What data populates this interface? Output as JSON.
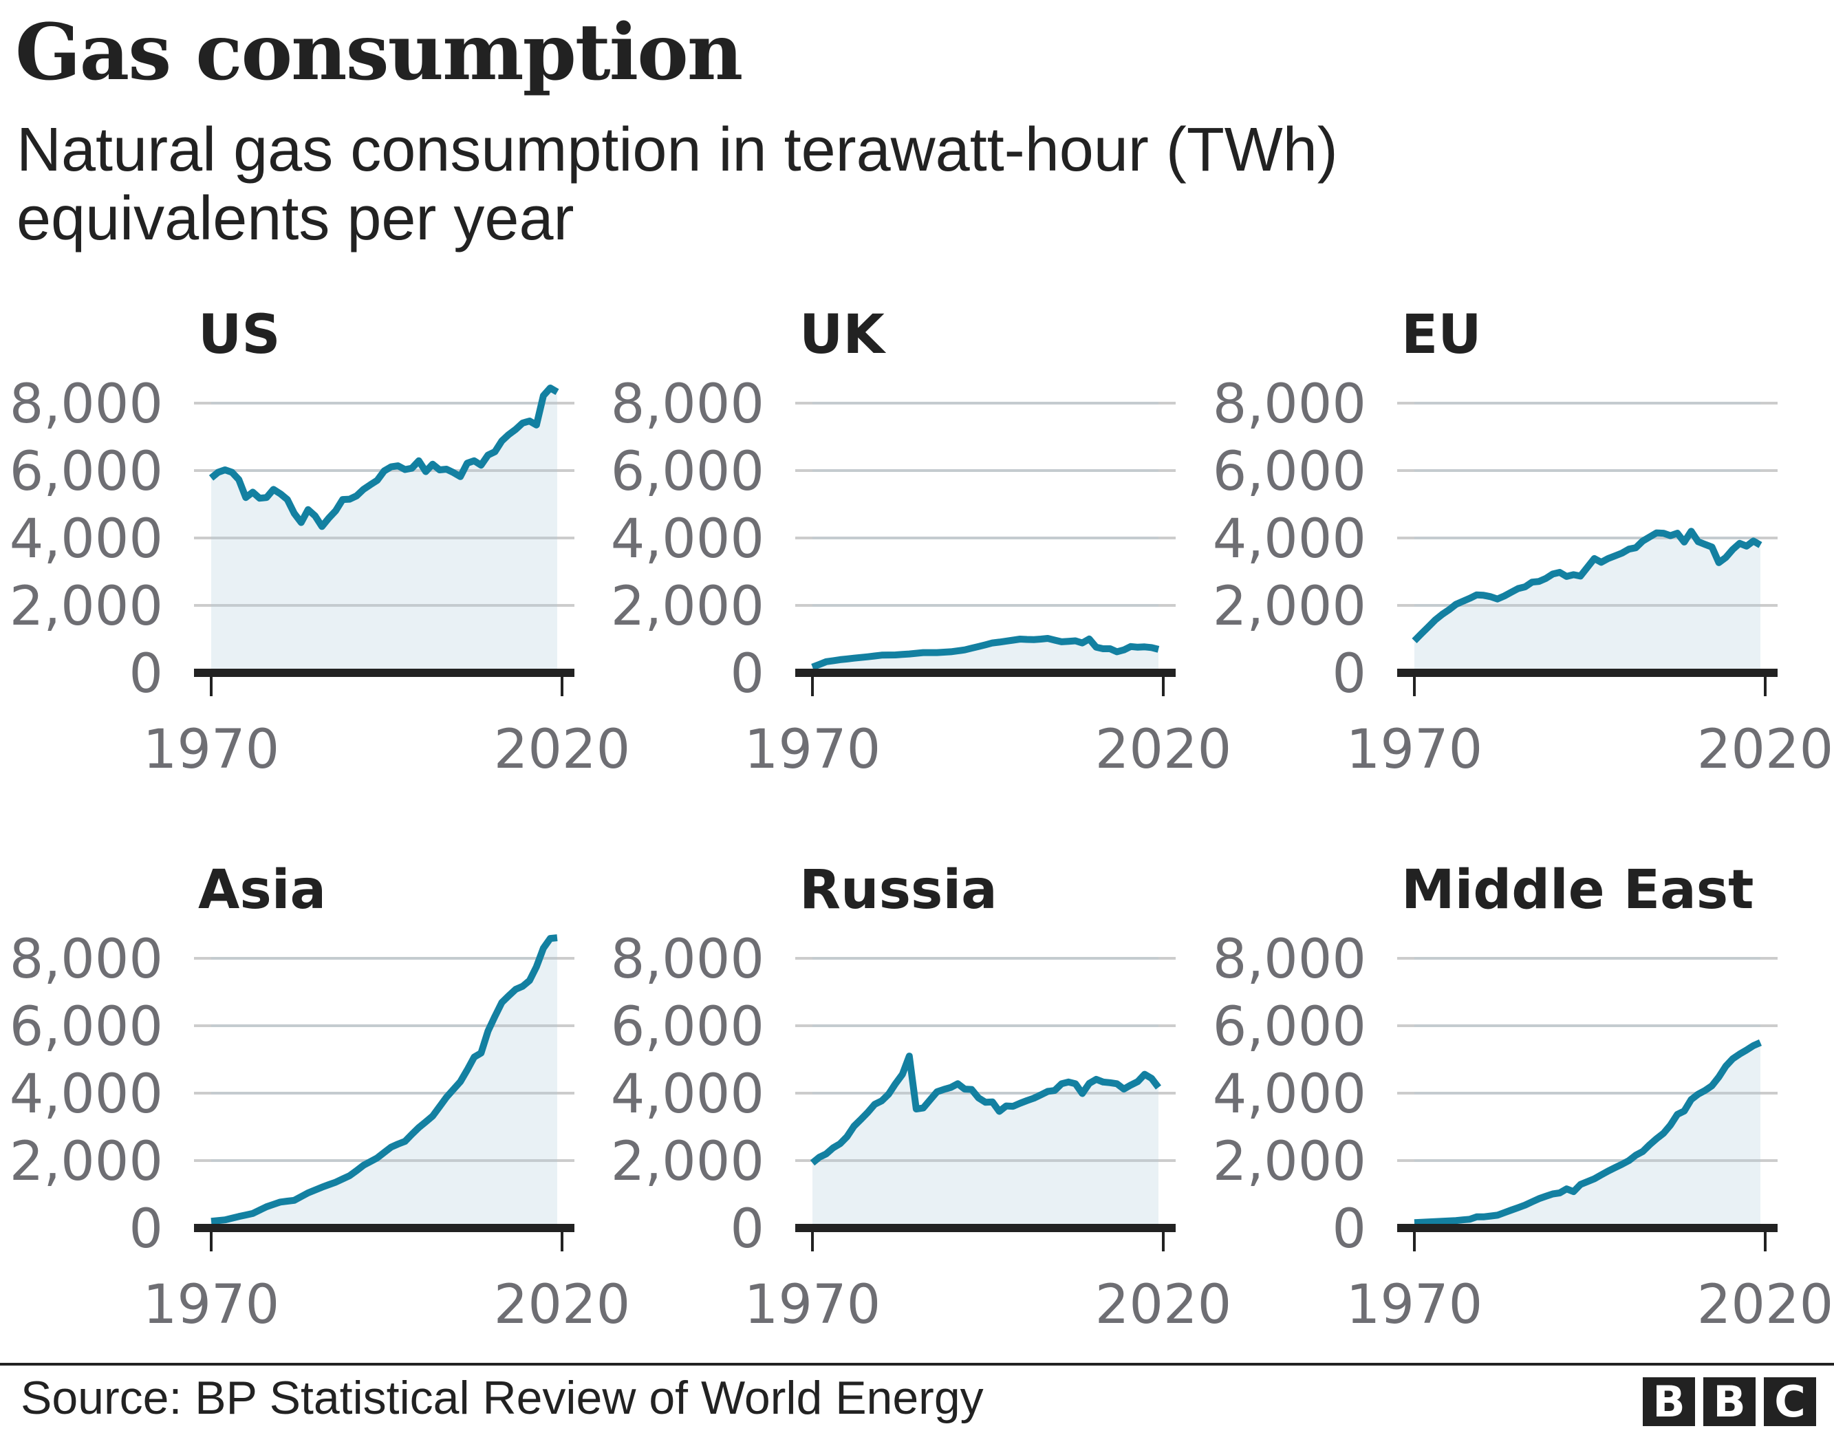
{
  "header": {
    "title": "Gas consumption",
    "subtitle": "Natural gas consumption in terawatt-hour (TWh) equivalents per year"
  },
  "footer": {
    "source": "Source: BP Statistical Review of World Energy",
    "logo_letters": [
      "B",
      "B",
      "C"
    ]
  },
  "colors": {
    "line": "#1380a1",
    "area": "#e9f1f5",
    "gridline": "#cccccc",
    "axis": "#222222",
    "tick_text": "#6e6e73",
    "title_text": "#222222"
  },
  "chart_data": [
    {
      "type": "area",
      "title": "US",
      "xlabel": "",
      "ylabel": "",
      "x_ticks": [
        "1970",
        "2020"
      ],
      "y_ticks": [
        "0",
        "2,000",
        "4,000",
        "6,000",
        "8,000"
      ],
      "ylim": [
        0,
        8000
      ],
      "xlim": [
        1970,
        2020
      ],
      "grid": true,
      "x_start": 1970,
      "values": [
        5780,
        5950,
        6020,
        5950,
        5730,
        5200,
        5360,
        5180,
        5200,
        5440,
        5310,
        5140,
        4730,
        4460,
        4840,
        4660,
        4340,
        4590,
        4810,
        5140,
        5150,
        5250,
        5440,
        5580,
        5710,
        5990,
        6110,
        6140,
        6030,
        6070,
        6290,
        5970,
        6190,
        6020,
        6040,
        5940,
        5820,
        6220,
        6290,
        6160,
        6460,
        6560,
        6880,
        7070,
        7220,
        7410,
        7470,
        7350,
        8220,
        8450,
        8330
      ]
    },
    {
      "type": "area",
      "title": "UK",
      "xlabel": "",
      "ylabel": "",
      "x_ticks": [
        "1970",
        "2020"
      ],
      "y_ticks": [
        "0",
        "2,000",
        "4,000",
        "6,000",
        "8,000"
      ],
      "ylim": [
        0,
        8000
      ],
      "xlim": [
        1970,
        2020
      ],
      "grid": true,
      "x_start": 1970,
      "values": [
        170,
        250,
        330,
        360,
        390,
        410,
        435,
        455,
        475,
        500,
        525,
        528,
        530,
        545,
        560,
        580,
        600,
        600,
        600,
        612,
        625,
        650,
        680,
        730,
        780,
        830,
        885,
        910,
        940,
        970,
        1000,
        990,
        985,
        1000,
        1020,
        970,
        920,
        935,
        950,
        885,
        1005,
        760,
        715,
        715,
        625,
        680,
        780,
        760,
        770,
        750,
        695
      ]
    },
    {
      "type": "area",
      "title": "EU",
      "xlabel": "",
      "ylabel": "",
      "x_ticks": [
        "1970",
        "2020"
      ],
      "y_ticks": [
        "0",
        "2,000",
        "4,000",
        "6,000",
        "8,000"
      ],
      "ylim": [
        0,
        8000
      ],
      "xlim": [
        1970,
        2020
      ],
      "grid": true,
      "x_start": 1970,
      "values": [
        950,
        1160,
        1360,
        1565,
        1730,
        1870,
        2030,
        2120,
        2210,
        2310,
        2300,
        2260,
        2190,
        2280,
        2390,
        2500,
        2550,
        2690,
        2710,
        2800,
        2930,
        2980,
        2860,
        2910,
        2870,
        3130,
        3390,
        3280,
        3390,
        3470,
        3550,
        3670,
        3710,
        3910,
        4030,
        4150,
        4140,
        4070,
        4140,
        3880,
        4200,
        3890,
        3810,
        3730,
        3270,
        3420,
        3660,
        3840,
        3760,
        3910,
        3790
      ]
    },
    {
      "type": "area",
      "title": "Asia",
      "xlabel": "",
      "ylabel": "",
      "x_ticks": [
        "1970",
        "2020"
      ],
      "y_ticks": [
        "0",
        "2,000",
        "4,000",
        "6,000",
        "8,000"
      ],
      "ylim": [
        0,
        8000
      ],
      "xlim": [
        1970,
        2020
      ],
      "grid": true,
      "x_start": 1970,
      "values": [
        200,
        220,
        240,
        290,
        340,
        385,
        430,
        530,
        630,
        700,
        770,
        795,
        820,
        930,
        1040,
        1125,
        1210,
        1285,
        1360,
        1455,
        1550,
        1700,
        1860,
        1970,
        2080,
        2240,
        2400,
        2490,
        2570,
        2780,
        2980,
        3150,
        3320,
        3600,
        3880,
        4110,
        4340,
        4690,
        5070,
        5190,
        5840,
        6280,
        6690,
        6890,
        7080,
        7170,
        7340,
        7750,
        8300,
        8590,
        8610
      ]
    },
    {
      "type": "area",
      "title": "Russia",
      "xlabel": "",
      "ylabel": "",
      "x_ticks": [
        "1970",
        "2020"
      ],
      "y_ticks": [
        "0",
        "2,000",
        "4,000",
        "6,000",
        "8,000"
      ],
      "ylim": [
        0,
        8000
      ],
      "xlim": [
        1970,
        2020
      ],
      "grid": true,
      "x_start": 1970,
      "values": [
        1930,
        2100,
        2200,
        2380,
        2500,
        2710,
        3020,
        3220,
        3430,
        3670,
        3770,
        3970,
        4280,
        4560,
        5100,
        3530,
        3560,
        3800,
        4040,
        4110,
        4170,
        4280,
        4120,
        4110,
        3860,
        3730,
        3740,
        3460,
        3620,
        3610,
        3700,
        3780,
        3850,
        3950,
        4050,
        4080,
        4280,
        4330,
        4280,
        3990,
        4290,
        4410,
        4330,
        4310,
        4280,
        4120,
        4240,
        4340,
        4560,
        4440,
        4170
      ]
    },
    {
      "type": "area",
      "title": "Middle East",
      "xlabel": "",
      "ylabel": "",
      "x_ticks": [
        "1970",
        "2020"
      ],
      "y_ticks": [
        "0",
        "2,000",
        "4,000",
        "6,000",
        "8,000"
      ],
      "ylim": [
        0,
        8000
      ],
      "xlim": [
        1970,
        2020
      ],
      "grid": true,
      "x_start": 1970,
      "values": [
        160,
        170,
        180,
        190,
        200,
        210,
        220,
        240,
        260,
        330,
        330,
        355,
        380,
        455,
        530,
        605,
        680,
        775,
        870,
        940,
        1010,
        1040,
        1160,
        1080,
        1290,
        1375,
        1460,
        1575,
        1690,
        1790,
        1890,
        2000,
        2160,
        2270,
        2470,
        2650,
        2810,
        3050,
        3370,
        3470,
        3810,
        3970,
        4080,
        4220,
        4480,
        4800,
        5020,
        5160,
        5280,
        5410,
        5500
      ]
    }
  ]
}
